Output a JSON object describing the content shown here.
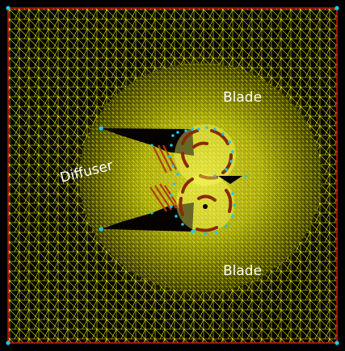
{
  "figure": {
    "labels": {
      "blade_top": "Blade",
      "diffuser": "Diffuser",
      "blade_bottom": "Blade"
    },
    "colors": {
      "background": "#000000",
      "mesh": "#ffff00",
      "boundary": "#d01010",
      "nodes": "#22c8e8",
      "body": "#050200",
      "blade_arc": "#8a2a06"
    },
    "icons": {
      "corner_marker": "cyan-dot",
      "boundary_node": "cyan-dot"
    }
  }
}
